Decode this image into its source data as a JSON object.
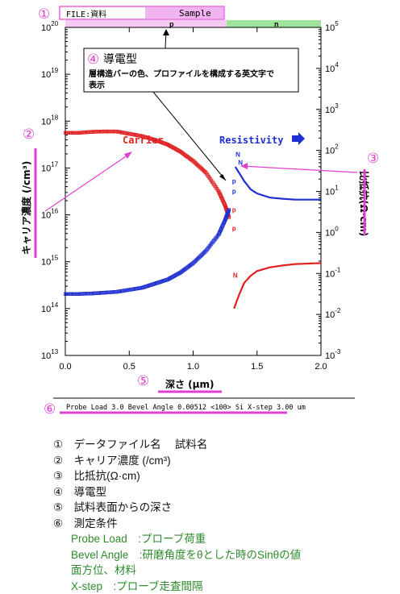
{
  "header": {
    "file_label": "FILE:資料",
    "sample_label": "Sample",
    "p_region": "p",
    "n_region": "n"
  },
  "callouts": {
    "c1": "①",
    "c2": "②",
    "c3": "③",
    "c4": "④",
    "c5": "⑤",
    "c6": "⑥"
  },
  "annotation_box": {
    "title": "導電型",
    "text_line1": "層構造バーの色、プロファイルを構成する英文字で",
    "text_line2": "表示"
  },
  "labels": {
    "carrier": "Carrier",
    "resistivity": "Resistivity",
    "x_axis": "深さ (μm)",
    "y_left": "キャリア濃度 (/cm³)",
    "y_right": "比抵抗(Ω·cm)",
    "conditions": "Probe Load 3.0 Bevel Angle 0.00512 <100> Si  X-step 3.00 um"
  },
  "chart_data": {
    "type": "line",
    "x": {
      "min": 0.0,
      "max": 2.0,
      "ticks": [
        "0.0",
        "0.5",
        "1.0",
        "1.5",
        "2.0"
      ]
    },
    "y_left": {
      "scale": "log",
      "min": 13,
      "max": 20,
      "ticks": [
        {
          "base": "10",
          "exp": "13"
        },
        {
          "base": "10",
          "exp": "14"
        },
        {
          "base": "10",
          "exp": "15"
        },
        {
          "base": "10",
          "exp": "16"
        },
        {
          "base": "10",
          "exp": "17"
        },
        {
          "base": "10",
          "exp": "18"
        },
        {
          "base": "10",
          "exp": "19"
        },
        {
          "base": "10",
          "exp": "20"
        }
      ]
    },
    "y_right": {
      "scale": "log",
      "min": -3,
      "max": 5,
      "ticks": [
        {
          "base": "10",
          "exp": "-3"
        },
        {
          "base": "10",
          "exp": "-2"
        },
        {
          "base": "10",
          "exp": "-1"
        },
        {
          "base": "10",
          "exp": "0"
        },
        {
          "base": "10",
          "exp": "1"
        },
        {
          "base": "10",
          "exp": "2"
        },
        {
          "base": "10",
          "exp": "3"
        },
        {
          "base": "10",
          "exp": "4"
        },
        {
          "base": "10",
          "exp": "5"
        }
      ]
    },
    "series": [
      {
        "name": "Carrier",
        "axis": "left",
        "color": "#e02020",
        "marker": "square",
        "x": [
          0.0,
          0.1,
          0.2,
          0.3,
          0.4,
          0.5,
          0.6,
          0.7,
          0.8,
          0.9,
          1.0,
          1.1,
          1.2,
          1.25,
          1.28
        ],
        "y": [
          17.75,
          17.75,
          17.77,
          17.78,
          17.78,
          17.73,
          17.68,
          17.6,
          17.5,
          17.35,
          17.15,
          16.9,
          16.5,
          16.2,
          15.95
        ]
      },
      {
        "name": "Carrier",
        "axis": "left",
        "color": "#e02020",
        "marker": "line",
        "x": [
          1.32,
          1.36,
          1.4,
          1.45,
          1.5,
          1.6,
          1.7,
          1.8,
          1.9,
          2.0
        ],
        "y": [
          14.0,
          14.3,
          14.55,
          14.7,
          14.8,
          14.88,
          14.92,
          14.95,
          14.96,
          14.97
        ]
      },
      {
        "name": "Resistivity",
        "axis": "right",
        "color": "#1f2fd0",
        "marker": "square",
        "x": [
          0.0,
          0.1,
          0.2,
          0.3,
          0.4,
          0.5,
          0.6,
          0.7,
          0.8,
          0.9,
          1.0,
          1.1,
          1.2,
          1.25,
          1.28
        ],
        "y": [
          -1.5,
          -1.5,
          -1.49,
          -1.47,
          -1.45,
          -1.4,
          -1.35,
          -1.25,
          -1.15,
          -0.98,
          -0.75,
          -0.45,
          -0.05,
          0.3,
          0.55
        ]
      },
      {
        "name": "Resistivity",
        "axis": "right",
        "color": "#1f2fd0",
        "marker": "line",
        "x": [
          1.33,
          1.36,
          1.4,
          1.45,
          1.5,
          1.6,
          1.7,
          1.8,
          1.9,
          2.0
        ],
        "y": [
          1.6,
          1.45,
          1.25,
          1.05,
          0.95,
          0.85,
          0.82,
          0.8,
          0.8,
          0.8
        ]
      }
    ],
    "type_markers": [
      {
        "char": "p",
        "x": 1.32,
        "y_right": 1.2,
        "color": "#1f2fd0"
      },
      {
        "char": "p",
        "x": 1.32,
        "y_right": 0.95,
        "color": "#1f2fd0"
      },
      {
        "char": "p",
        "x": 1.32,
        "y_right": 0.5,
        "color": "#e02020"
      },
      {
        "char": "p",
        "x": 1.32,
        "y_right": 0.05,
        "color": "#e02020"
      },
      {
        "char": "N",
        "x": 1.35,
        "y_right": 1.85,
        "color": "#1f2fd0"
      },
      {
        "char": "N",
        "x": 1.37,
        "y_right": 1.65,
        "color": "#1f2fd0"
      },
      {
        "char": "N",
        "x": 1.33,
        "y_right": -1.1,
        "color": "#e02020"
      }
    ]
  },
  "legend": {
    "items": [
      {
        "num": "①",
        "text": "データファイル名　 試料名"
      },
      {
        "num": "②",
        "text": "キャリア濃度 (/cm³)"
      },
      {
        "num": "③",
        "text": "比抵抗(Ω·cm)"
      },
      {
        "num": "④",
        "text": "導電型"
      },
      {
        "num": "⑤",
        "text": "試料表面からの深さ"
      },
      {
        "num": "⑥",
        "text": "測定条件"
      }
    ],
    "conditions": [
      "Probe Load　:プローブ荷重",
      "Bevel Angle　:研磨角度をθとした時のSinθの値",
      "面方位、材料",
      "X-step　:プローブ走査間隔"
    ]
  },
  "colors": {
    "callout": "#e040d0",
    "carrier": "#e02020",
    "resistivity": "#1f2fd0",
    "p_bar": "#f2b4f0",
    "n_bar": "#9ee49a",
    "legend_green": "#2e8b2e"
  }
}
